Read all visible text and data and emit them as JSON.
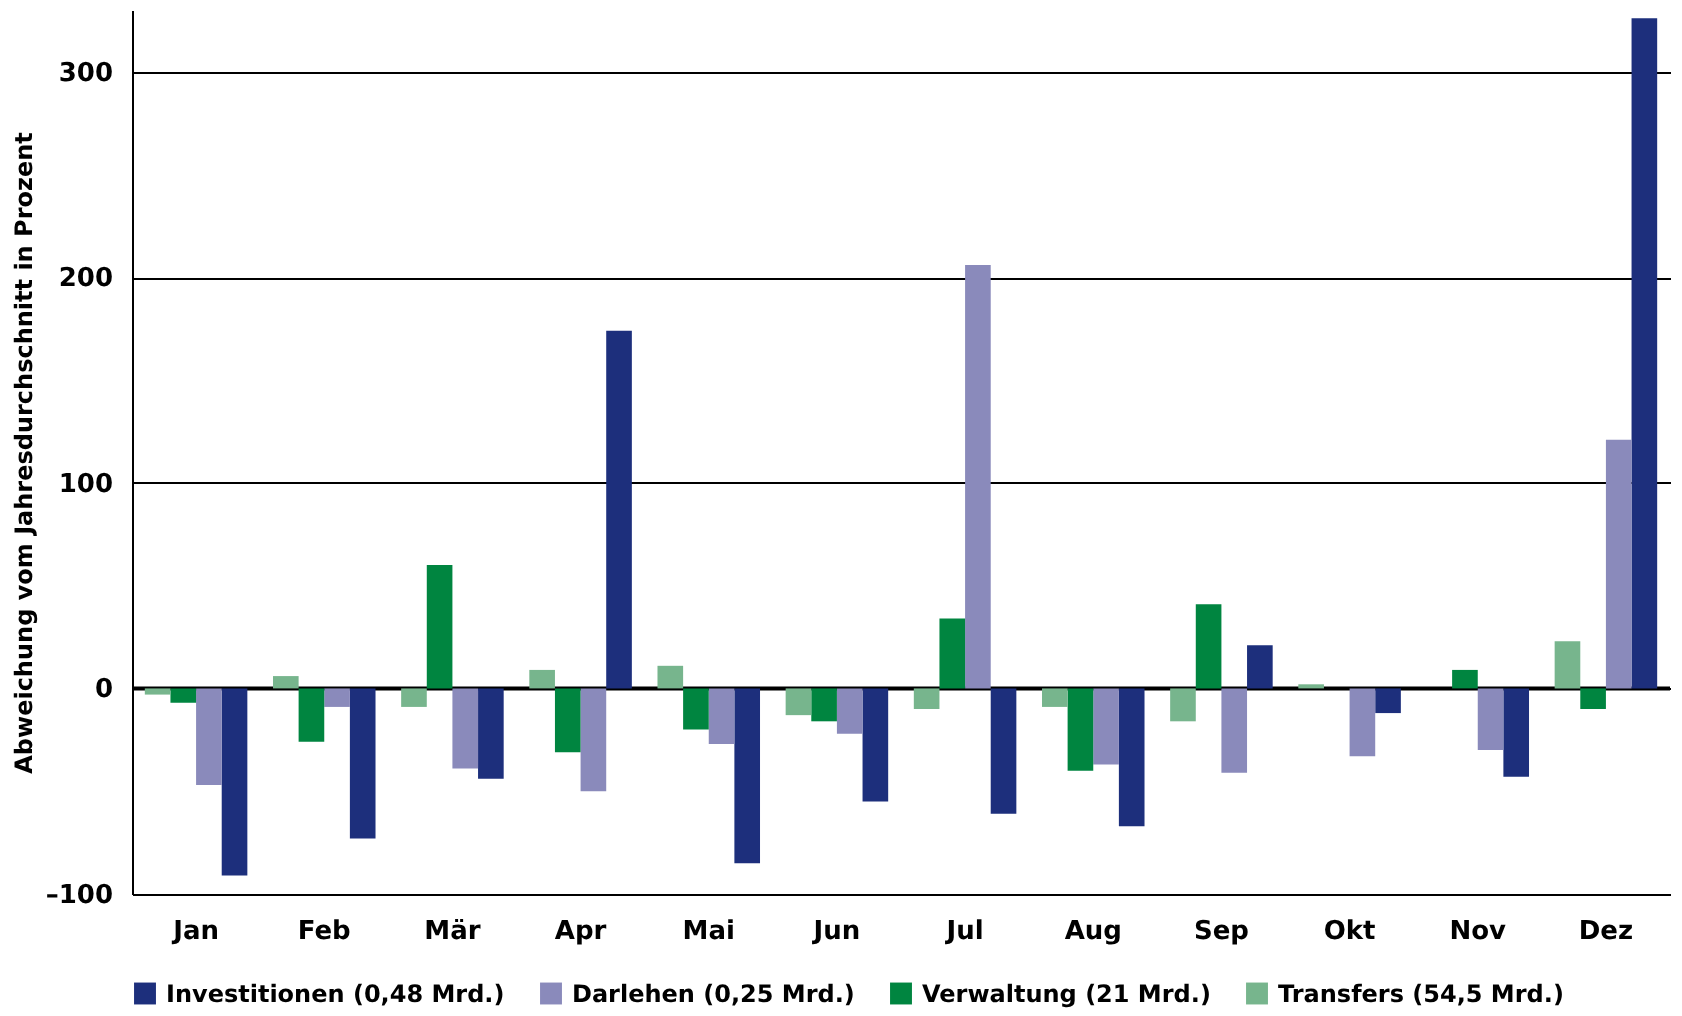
{
  "chart_data": {
    "type": "bar",
    "ylabel": "Abweichung vom Jahresdurchschnitt in Prozent",
    "categories": [
      "Jan",
      "Feb",
      "Mär",
      "Apr",
      "Mai",
      "Jun",
      "Jul",
      "Aug",
      "Sep",
      "Okt",
      "Nov",
      "Dez"
    ],
    "series": [
      {
        "name": "Investitionen (0,48 Mrd.)",
        "color": "#1d2f7c",
        "values": [
          -91,
          -73,
          -44,
          174,
          -85,
          -55,
          -61,
          -67,
          21,
          -12,
          -43,
          326
        ]
      },
      {
        "name": "Darlehen (0,25 Mrd.)",
        "color": "#8a8abb",
        "values": [
          -47,
          -9,
          -39,
          -50,
          -27,
          -22,
          206,
          -37,
          -41,
          -33,
          -30,
          121
        ]
      },
      {
        "name": "Verwaltung (21 Mrd.)",
        "color": "#008540",
        "values": [
          -7,
          -26,
          60,
          -31,
          -20,
          -16,
          34,
          -40,
          41,
          0,
          9,
          -10
        ]
      },
      {
        "name": "Transfers (54,5 Mrd.)",
        "color": "#77b58d",
        "values": [
          -3,
          6,
          -9,
          9,
          11,
          -13,
          -10,
          -9,
          -16,
          2,
          0,
          23
        ]
      }
    ],
    "ylim": [
      -100,
      330
    ],
    "yticks": [
      {
        "value": -100,
        "label": "–100"
      },
      0,
      100,
      200,
      300
    ],
    "grid": "y",
    "legend": "bottom"
  }
}
